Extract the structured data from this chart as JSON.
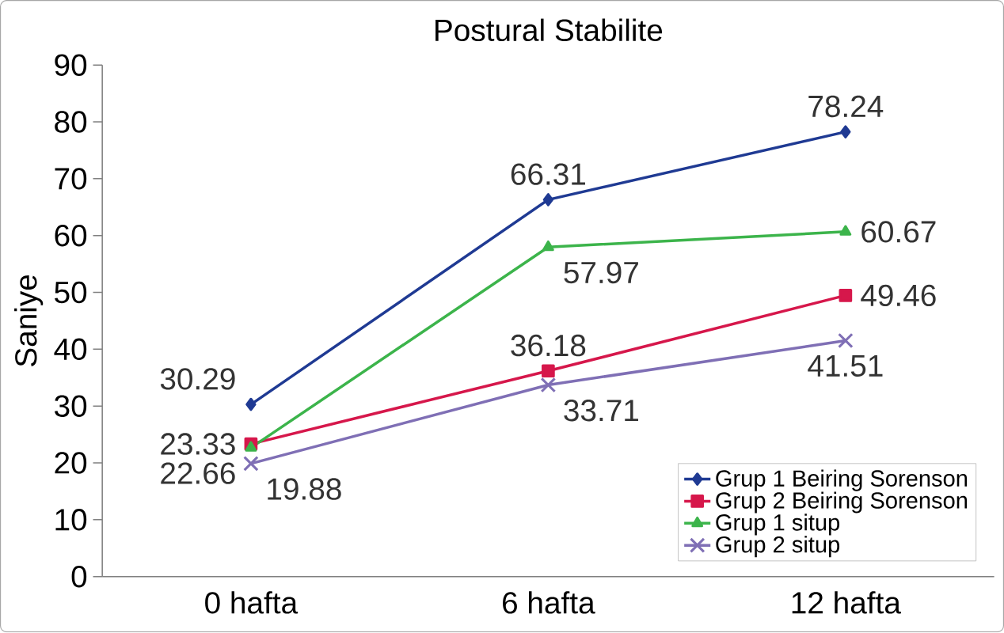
{
  "chart_data": {
    "type": "line",
    "title": "Postural Stabilite",
    "ylabel": "Saniye",
    "categories": [
      "0 hafta",
      "6 hafta",
      "12 hafta"
    ],
    "series": [
      {
        "name": "Grup 1 Beiring Sorenson",
        "color": "#1f3a93",
        "marker": "diamond",
        "values": [
          30.29,
          66.31,
          78.24
        ]
      },
      {
        "name": "Grup 2 Beiring Sorenson",
        "color": "#d6174b",
        "marker": "square",
        "values": [
          23.33,
          36.18,
          49.46
        ]
      },
      {
        "name": "Grup 1 situp",
        "color": "#3cb44b",
        "marker": "triangle",
        "values": [
          22.66,
          57.97,
          60.67
        ]
      },
      {
        "name": "Grup 2 situp",
        "color": "#7f6fb5",
        "marker": "cross",
        "values": [
          19.88,
          33.71,
          41.51
        ]
      }
    ],
    "ylim": [
      0,
      90
    ],
    "yticks": [
      0,
      10,
      20,
      30,
      40,
      50,
      60,
      70,
      80,
      90
    ],
    "data_labels": true,
    "legend": "bottom right",
    "grid": false,
    "line_style": "solid"
  }
}
